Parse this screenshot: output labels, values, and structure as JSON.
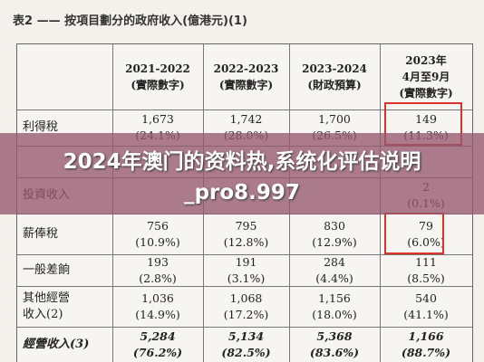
{
  "title": "表2 —— 按項目劃分的政府收入(億港元)(1)",
  "table": {
    "header": [
      "2021-2022\n(實際數字)",
      "2022-2023\n(實際數字)",
      "2023-2024\n(財政預算)",
      "2023年\n4月至9月\n(實際數字)"
    ],
    "rows": [
      [
        "利得稅",
        "1,673\n(24.1%)",
        "1,742\n(28.0%)",
        "1,700\n(26.5%)",
        "149\n(11.3%)"
      ],
      [
        "投資收入",
        null,
        null,
        null,
        "2\n(0.1%)"
      ],
      [
        "薪俸稅",
        "756\n(10.9%)",
        "795\n(12.8%)",
        "830\n(12.9%)",
        "79\n(6.0%)"
      ],
      [
        "一般差餉",
        "193\n(2.8%)",
        "191\n(3.1%)",
        "284\n(4.4%)",
        "111\n(8.5%)"
      ],
      [
        "其他經營\n收入(2)",
        "1,036\n(14.9%)",
        "1,068\n(17.2%)",
        "1,156\n(18.0%)",
        "540\n(41.1%)"
      ],
      [
        "經營收入(3)",
        "5,284\n(76.2%)",
        "5,134\n(82.5%)",
        "5,368\n(83.6%)",
        "1,166\n(88.7%)"
      ]
    ]
  },
  "banner": "2024年澳门的资料热,系统化评估说明_pro8.997"
}
